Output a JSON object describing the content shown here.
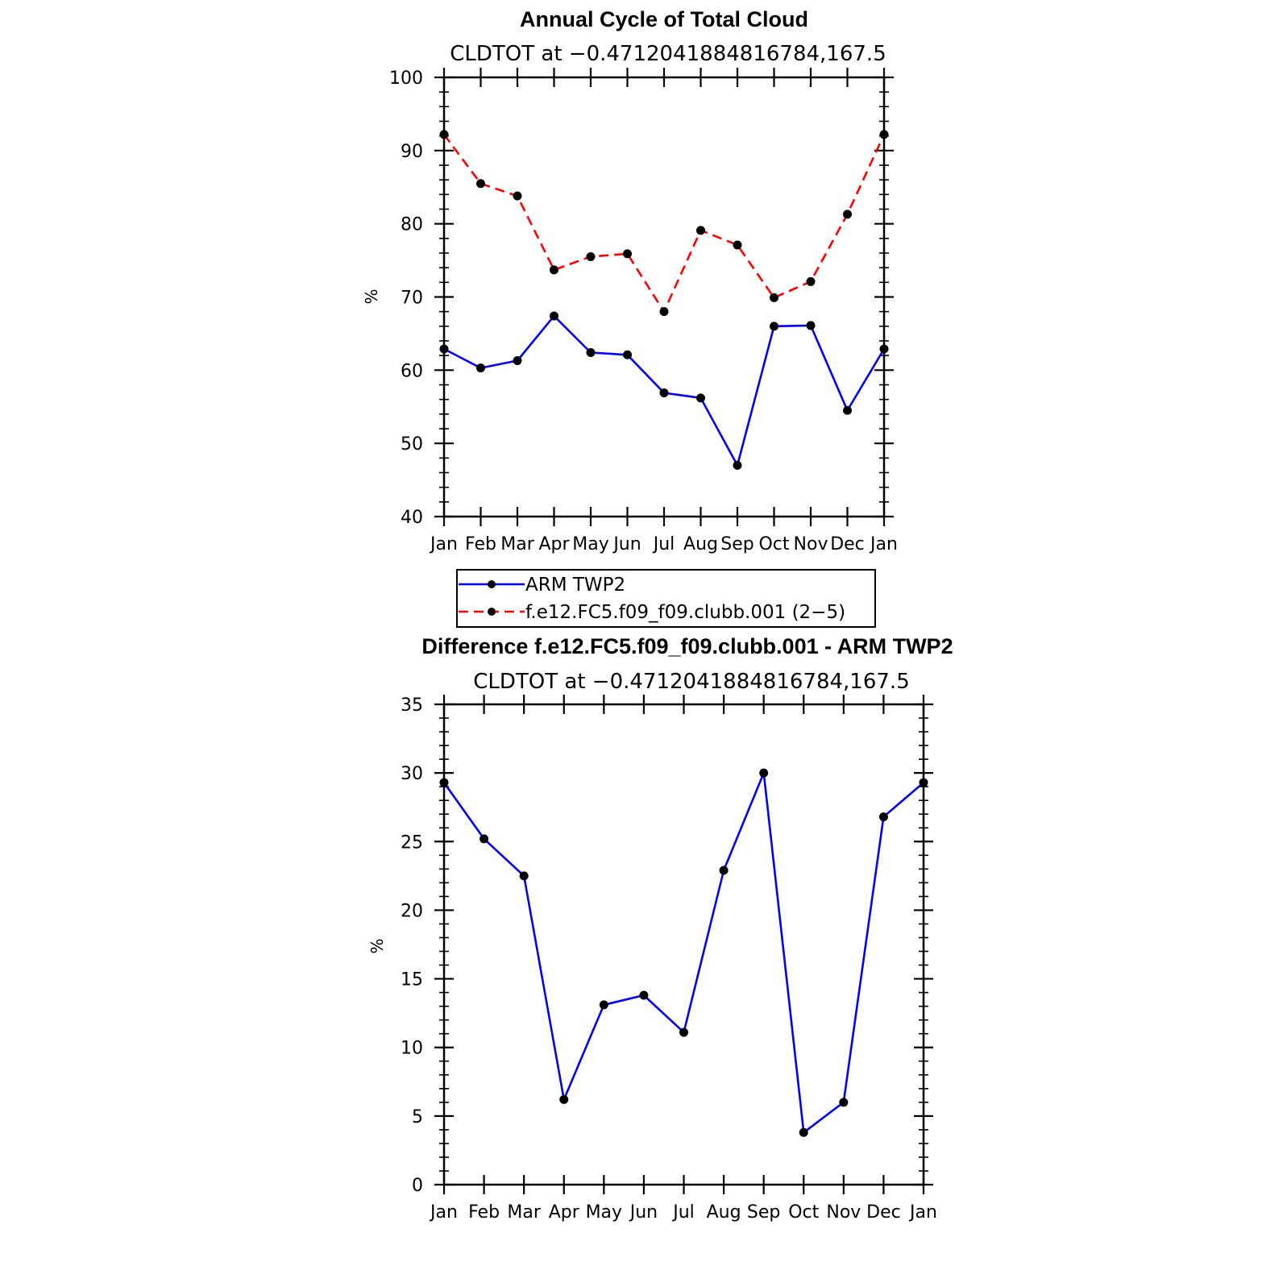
{
  "chart_data": [
    {
      "type": "line",
      "title": "Annual Cycle of Total Cloud",
      "subtitle": "CLDTOT at −0.4712041884816784,167.5",
      "ylabel": "%",
      "xlabel": "",
      "ylim": [
        40,
        100
      ],
      "yticks": [
        "40",
        "50",
        "60",
        "70",
        "80",
        "90",
        "100"
      ],
      "categories": [
        "Jan",
        "Feb",
        "Mar",
        "Apr",
        "May",
        "Jun",
        "Jul",
        "Aug",
        "Sep",
        "Oct",
        "Nov",
        "Dec",
        "Jan"
      ],
      "series": [
        {
          "name": "ARM TWP2",
          "color": "#0000ff",
          "dash": "solid",
          "values": [
            62.9,
            60.3,
            61.3,
            67.4,
            62.4,
            62.1,
            56.9,
            56.2,
            47.0,
            66.0,
            66.1,
            54.5,
            62.9
          ]
        },
        {
          "name": "f.e12.FC5.f09_f09.clubb.001 (2−5)",
          "color": "#ff0000",
          "dash": "dashed",
          "values": [
            92.2,
            85.5,
            83.8,
            73.7,
            75.5,
            75.9,
            68.0,
            79.1,
            77.1,
            69.9,
            72.1,
            81.3,
            92.2
          ]
        }
      ],
      "legend": [
        "ARM TWP2",
        "f.e12.FC5.f09_f09.clubb.001 (2−5)"
      ],
      "legend_position": "below"
    },
    {
      "type": "line",
      "title": "Difference f.e12.FC5.f09_f09.clubb.001 - ARM TWP2",
      "subtitle": "CLDTOT at −0.4712041884816784,167.5",
      "ylabel": "%",
      "xlabel": "",
      "ylim": [
        0,
        35
      ],
      "yticks": [
        "0",
        "5",
        "10",
        "15",
        "20",
        "25",
        "30",
        "35"
      ],
      "categories": [
        "Jan",
        "Feb",
        "Mar",
        "Apr",
        "May",
        "Jun",
        "Jul",
        "Aug",
        "Sep",
        "Oct",
        "Nov",
        "Dec",
        "Jan"
      ],
      "series": [
        {
          "name": "Difference",
          "color": "#0000ff",
          "dash": "solid",
          "values": [
            29.3,
            25.2,
            22.5,
            6.2,
            13.1,
            13.8,
            11.1,
            22.9,
            30.0,
            3.8,
            6.0,
            26.8,
            29.3
          ]
        }
      ]
    }
  ]
}
